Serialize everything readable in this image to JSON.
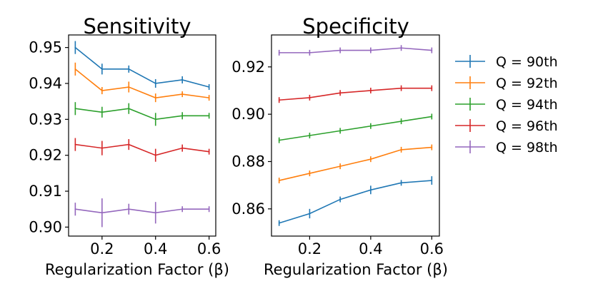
{
  "chart_data": [
    {
      "type": "line",
      "title": "Sensitivity",
      "xlabel": "Regularization Factor (β)",
      "ylabel": "",
      "x": [
        0.1,
        0.2,
        0.3,
        0.4,
        0.5,
        0.6
      ],
      "xlim": [
        0.075,
        0.625
      ],
      "ylim": [
        0.8975,
        0.9535
      ],
      "xticks": [
        0.2,
        0.4,
        0.6
      ],
      "xtick_labels": [
        "0.2",
        "0.4",
        "0.6"
      ],
      "yticks": [
        0.9,
        0.91,
        0.92,
        0.93,
        0.94,
        0.95
      ],
      "ytick_labels": [
        "0.90",
        "0.91",
        "0.92",
        "0.93",
        "0.94",
        "0.95"
      ],
      "grid": false,
      "series": [
        {
          "name": "Q = 90th",
          "values": [
            0.95,
            0.944,
            0.944,
            0.94,
            0.941,
            0.939
          ],
          "errors": [
            0.0018,
            0.0015,
            0.001,
            0.0012,
            0.001,
            0.0008
          ]
        },
        {
          "name": "Q = 92th",
          "values": [
            0.944,
            0.938,
            0.939,
            0.936,
            0.937,
            0.936
          ],
          "errors": [
            0.0018,
            0.001,
            0.0015,
            0.0012,
            0.0008,
            0.0004
          ]
        },
        {
          "name": "Q = 94th",
          "values": [
            0.933,
            0.932,
            0.933,
            0.93,
            0.931,
            0.931
          ],
          "errors": [
            0.0018,
            0.0015,
            0.0015,
            0.0018,
            0.001,
            0.0008
          ]
        },
        {
          "name": "Q = 96th",
          "values": [
            0.923,
            0.922,
            0.923,
            0.92,
            0.922,
            0.921
          ],
          "errors": [
            0.0018,
            0.002,
            0.0015,
            0.0018,
            0.001,
            0.0008
          ]
        },
        {
          "name": "Q = 98th",
          "values": [
            0.905,
            0.904,
            0.905,
            0.904,
            0.905,
            0.905
          ],
          "errors": [
            0.0018,
            0.004,
            0.0015,
            0.003,
            0.0008,
            0.0008
          ]
        }
      ]
    },
    {
      "type": "line",
      "title": "Specificity",
      "xlabel": "Regularization Factor (β)",
      "ylabel": "",
      "x": [
        0.1,
        0.2,
        0.3,
        0.4,
        0.5,
        0.6
      ],
      "xlim": [
        0.075,
        0.625
      ],
      "ylim": [
        0.8485,
        0.9335
      ],
      "xticks": [
        0.2,
        0.4,
        0.6
      ],
      "xtick_labels": [
        "0.2",
        "0.4",
        "0.6"
      ],
      "yticks": [
        0.86,
        0.88,
        0.9,
        0.92
      ],
      "ytick_labels": [
        "0.86",
        "0.88",
        "0.90",
        "0.92"
      ],
      "grid": false,
      "series": [
        {
          "name": "Q = 90th",
          "values": [
            0.854,
            0.858,
            0.864,
            0.868,
            0.871,
            0.872
          ],
          "errors": [
            0.001,
            0.002,
            0.001,
            0.0018,
            0.001,
            0.0018
          ]
        },
        {
          "name": "Q = 92th",
          "values": [
            0.872,
            0.875,
            0.878,
            0.881,
            0.885,
            0.886
          ],
          "errors": [
            0.001,
            0.001,
            0.0008,
            0.001,
            0.0012,
            0.001
          ]
        },
        {
          "name": "Q = 94th",
          "values": [
            0.889,
            0.891,
            0.893,
            0.895,
            0.897,
            0.899
          ],
          "errors": [
            0.0008,
            0.0008,
            0.0005,
            0.0008,
            0.0008,
            0.001
          ]
        },
        {
          "name": "Q = 96th",
          "values": [
            0.906,
            0.907,
            0.909,
            0.91,
            0.911,
            0.911
          ],
          "errors": [
            0.0008,
            0.0008,
            0.001,
            0.0008,
            0.0008,
            0.0008
          ]
        },
        {
          "name": "Q = 98th",
          "values": [
            0.926,
            0.926,
            0.927,
            0.927,
            0.928,
            0.927
          ],
          "errors": [
            0.0005,
            0.0008,
            0.0008,
            0.0005,
            0.0008,
            0.001
          ]
        }
      ]
    }
  ],
  "legend": {
    "placement": "right",
    "entries": [
      "Q = 90th",
      "Q = 92th",
      "Q = 94th",
      "Q = 96th",
      "Q = 98th"
    ]
  },
  "colors": [
    "#1f77b4",
    "#ff7f0e",
    "#2ca02c",
    "#d62728",
    "#9467bd"
  ]
}
